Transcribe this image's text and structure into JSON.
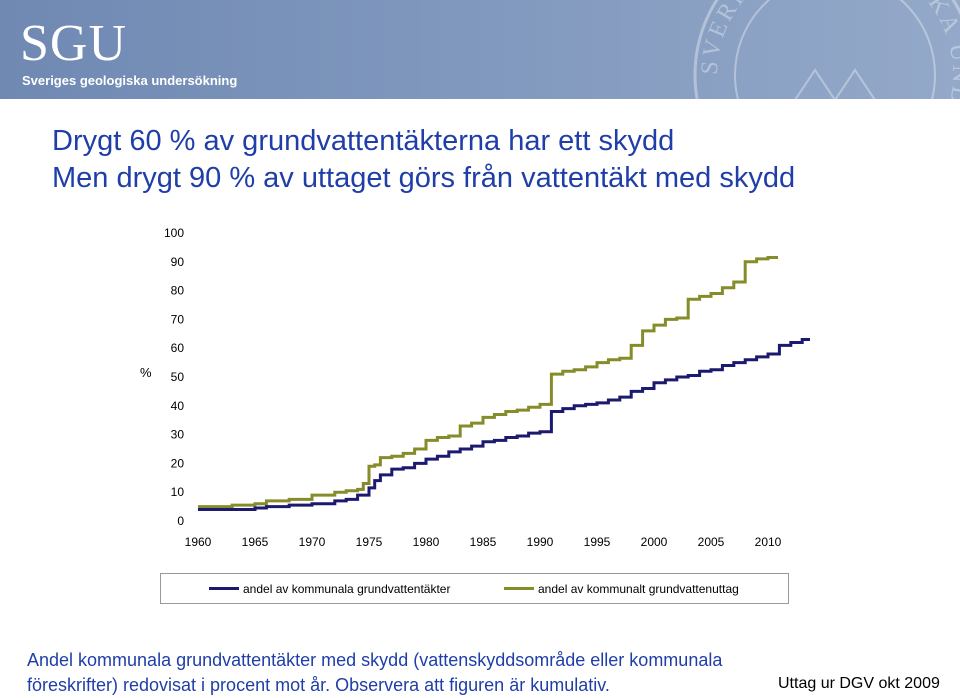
{
  "header": {
    "logo": "SGU",
    "logo_subtitle": "Sveriges geologiska undersökning",
    "seal_text": "SVERIGES GEOLOGISKA UNDERSÖKNING"
  },
  "title": {
    "line1": "Drygt 60 % av grundvattentäkterna har ett skydd",
    "line2": "Men drygt 90 % av uttaget görs från vattentäkt med skydd"
  },
  "chart_data": {
    "type": "line",
    "line_style": "step",
    "title": "",
    "xlabel": "",
    "ylabel": "%",
    "xlim": [
      1960,
      2010
    ],
    "ylim": [
      0,
      100
    ],
    "x_ticks": [
      1960,
      1965,
      1970,
      1975,
      1980,
      1985,
      1990,
      1995,
      2000,
      2005,
      2010
    ],
    "y_ticks": [
      0,
      10,
      20,
      30,
      40,
      50,
      60,
      70,
      80,
      90,
      100
    ],
    "grid": false,
    "legend_position": "bottom",
    "series": [
      {
        "name": "andel av kommunala grundvattentäkter",
        "color": "#1b1a6e",
        "points": [
          [
            1960,
            4
          ],
          [
            1963,
            4
          ],
          [
            1965,
            4.5
          ],
          [
            1966,
            5
          ],
          [
            1967,
            5
          ],
          [
            1968,
            5.5
          ],
          [
            1970,
            6
          ],
          [
            1972,
            7
          ],
          [
            1973,
            7.5
          ],
          [
            1974,
            9
          ],
          [
            1975,
            11.5
          ],
          [
            1975.5,
            14
          ],
          [
            1976,
            16
          ],
          [
            1977,
            18
          ],
          [
            1978,
            18.5
          ],
          [
            1979,
            20
          ],
          [
            1980,
            21.5
          ],
          [
            1981,
            22.5
          ],
          [
            1982,
            24
          ],
          [
            1983,
            25
          ],
          [
            1984,
            26
          ],
          [
            1985,
            27.5
          ],
          [
            1986,
            28
          ],
          [
            1987,
            29
          ],
          [
            1988,
            29.5
          ],
          [
            1989,
            30.5
          ],
          [
            1990,
            31
          ],
          [
            1991,
            38
          ],
          [
            1992,
            39
          ],
          [
            1993,
            40
          ],
          [
            1994,
            40.5
          ],
          [
            1995,
            41
          ],
          [
            1996,
            42
          ],
          [
            1997,
            43
          ],
          [
            1998,
            45
          ],
          [
            1999,
            46
          ],
          [
            2000,
            48
          ],
          [
            2001,
            49
          ],
          [
            2002,
            50
          ],
          [
            2003,
            50.5
          ],
          [
            2004,
            52
          ],
          [
            2005,
            52.5
          ],
          [
            2006,
            54
          ],
          [
            2007,
            55
          ],
          [
            2008,
            56
          ],
          [
            2009,
            57
          ],
          [
            2010,
            58
          ],
          [
            2011,
            61
          ],
          [
            2012,
            62
          ],
          [
            2013,
            63
          ]
        ]
      },
      {
        "name": "andel av kommunalt grundvattenuttag",
        "color": "#868c2a",
        "points": [
          [
            1960,
            5
          ],
          [
            1963,
            5.5
          ],
          [
            1965,
            6
          ],
          [
            1966,
            7
          ],
          [
            1967,
            7
          ],
          [
            1968,
            7.5
          ],
          [
            1970,
            9
          ],
          [
            1972,
            10
          ],
          [
            1973,
            10.5
          ],
          [
            1974,
            11
          ],
          [
            1974.5,
            13
          ],
          [
            1975,
            19
          ],
          [
            1975.5,
            19.5
          ],
          [
            1976,
            22
          ],
          [
            1977,
            22.5
          ],
          [
            1978,
            23.5
          ],
          [
            1979,
            25
          ],
          [
            1980,
            28
          ],
          [
            1981,
            29
          ],
          [
            1982,
            29.5
          ],
          [
            1983,
            33
          ],
          [
            1984,
            34
          ],
          [
            1985,
            36
          ],
          [
            1986,
            37
          ],
          [
            1987,
            38
          ],
          [
            1988,
            38.5
          ],
          [
            1989,
            39.5
          ],
          [
            1990,
            40.5
          ],
          [
            1991,
            51
          ],
          [
            1992,
            52
          ],
          [
            1993,
            52.5
          ],
          [
            1994,
            53.5
          ],
          [
            1995,
            55
          ],
          [
            1996,
            56
          ],
          [
            1997,
            56.5
          ],
          [
            1998,
            61
          ],
          [
            1999,
            66
          ],
          [
            2000,
            68
          ],
          [
            2001,
            70
          ],
          [
            2002,
            70.5
          ],
          [
            2003,
            77
          ],
          [
            2004,
            78
          ],
          [
            2005,
            79
          ],
          [
            2006,
            81
          ],
          [
            2007,
            83
          ],
          [
            2008,
            90
          ],
          [
            2009,
            91
          ],
          [
            2010,
            91.5
          ]
        ]
      }
    ]
  },
  "caption": {
    "line1": "Andel kommunala grundvattentäkter med skydd (vattenskyddsområde eller kommunala",
    "line2": "föreskrifter) redovisat i procent mot år. Observera att figuren är kumulativ."
  },
  "source": "Uttag ur DGV okt 2009"
}
